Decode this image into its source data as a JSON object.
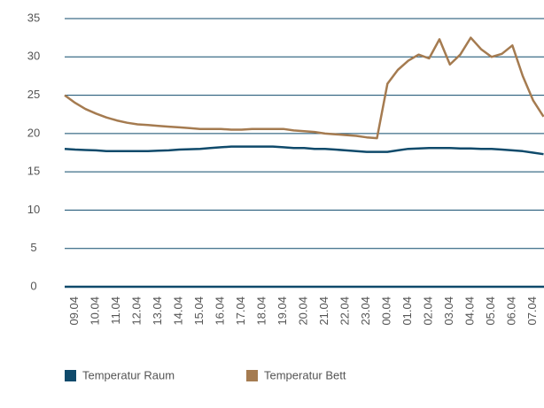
{
  "chart_data": {
    "type": "line",
    "categories": [
      null,
      "09.04",
      null,
      "10.04",
      null,
      "11.04",
      null,
      "12.04",
      null,
      "13.04",
      null,
      "14.04",
      null,
      "15.04",
      null,
      "16.04",
      null,
      "17.04",
      null,
      "18.04",
      null,
      "19.04",
      null,
      "20.04",
      null,
      "21.04",
      null,
      "22.04",
      null,
      "23.04",
      null,
      "00.04",
      null,
      "01.04",
      null,
      "02.04",
      null,
      "03.04",
      null,
      "04.04",
      null,
      "05.04",
      null,
      "06.04",
      null,
      "07.04",
      null
    ],
    "series": [
      {
        "name": "Temperatur Raum",
        "color": "#0f4a6b",
        "values": [
          18.0,
          17.9,
          17.85,
          17.8,
          17.7,
          17.7,
          17.7,
          17.7,
          17.7,
          17.75,
          17.8,
          17.9,
          17.95,
          18.0,
          18.1,
          18.2,
          18.3,
          18.3,
          18.3,
          18.3,
          18.3,
          18.2,
          18.1,
          18.1,
          18.0,
          18.0,
          17.9,
          17.8,
          17.7,
          17.6,
          17.6,
          17.6,
          17.8,
          18.0,
          18.05,
          18.1,
          18.1,
          18.1,
          18.05,
          18.05,
          18.0,
          18.0,
          17.9,
          17.8,
          17.7,
          17.5,
          17.3
        ]
      },
      {
        "name": "Temperatur Bett",
        "color": "#a57b50",
        "values": [
          25.0,
          24.0,
          23.2,
          22.6,
          22.1,
          21.7,
          21.4,
          21.2,
          21.1,
          21.0,
          20.9,
          20.8,
          20.7,
          20.6,
          20.6,
          20.6,
          20.5,
          20.5,
          20.6,
          20.6,
          20.6,
          20.6,
          20.4,
          20.3,
          20.2,
          20.0,
          19.9,
          19.8,
          19.7,
          19.5,
          19.4,
          26.5,
          28.3,
          29.5,
          30.3,
          29.8,
          32.3,
          29.0,
          30.3,
          32.5,
          31.0,
          30.0,
          30.4,
          31.5,
          27.5,
          24.3,
          22.2
        ]
      }
    ],
    "ylim": [
      0,
      35
    ],
    "yticks": [
      0,
      5,
      10,
      15,
      20,
      25,
      30,
      35
    ],
    "grid": true,
    "legend": "bottom"
  }
}
